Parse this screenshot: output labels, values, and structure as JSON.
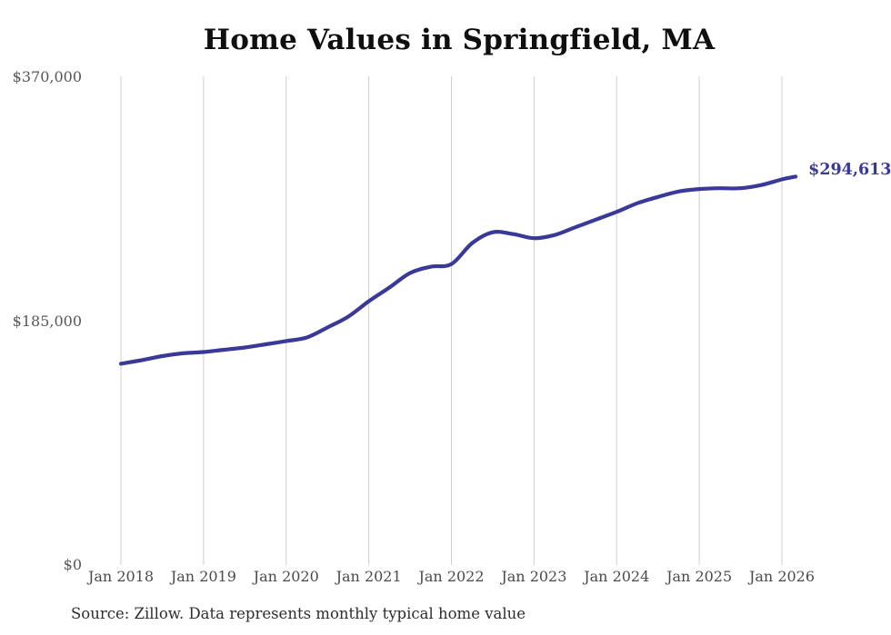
{
  "chart": {
    "title": "Home Values in Springfield, MA",
    "end_label": "$294,613",
    "source_note": "Source: Zillow. Data represents monthly typical home value",
    "colors": {
      "line": "#39399a",
      "end_label_text": "#39399a",
      "grid": "#cfcfcf",
      "y_tick_text": "#565656",
      "x_tick_text": "#4a4a4a",
      "title_text": "#0f0f0f",
      "source_text": "#2e2e2e",
      "background": "#ffffff"
    }
  },
  "chart_data": {
    "type": "line",
    "title": "Home Values in Springfield, MA",
    "x_tick_labels": [
      "Jan 2018",
      "Jan 2019",
      "Jan 2020",
      "Jan 2021",
      "Jan 2022",
      "Jan 2023",
      "Jan 2024",
      "Jan 2025",
      "Jan 2026"
    ],
    "y_tick_labels": [
      "$0",
      "$185,000",
      "$370,000"
    ],
    "y_ticks": [
      0,
      185000,
      370000
    ],
    "ylim": [
      0,
      370000
    ],
    "grid": "vertical-only",
    "legend": "none",
    "x_unit": "months since Jan 2018, monthly typical home value in USD",
    "series": [
      {
        "name": "Typical home value",
        "points": [
          [
            0,
            152700
          ],
          [
            3,
            155400
          ],
          [
            6,
            158500
          ],
          [
            9,
            160600
          ],
          [
            12,
            161600
          ],
          [
            15,
            163300
          ],
          [
            18,
            165000
          ],
          [
            21,
            167400
          ],
          [
            24,
            169900
          ],
          [
            27,
            172600
          ],
          [
            30,
            180200
          ],
          [
            33,
            188400
          ],
          [
            36,
            200100
          ],
          [
            39,
            210500
          ],
          [
            42,
            221500
          ],
          [
            45,
            226300
          ],
          [
            48,
            228300
          ],
          [
            51,
            244100
          ],
          [
            54,
            252400
          ],
          [
            57,
            251000
          ],
          [
            60,
            247900
          ],
          [
            63,
            250300
          ],
          [
            66,
            256200
          ],
          [
            69,
            262000
          ],
          [
            72,
            267900
          ],
          [
            75,
            274400
          ],
          [
            78,
            279200
          ],
          [
            81,
            283300
          ],
          [
            84,
            285200
          ],
          [
            87,
            285800
          ],
          [
            90,
            285800
          ],
          [
            93,
            288200
          ],
          [
            96,
            292500
          ],
          [
            98,
            294613
          ]
        ]
      }
    ],
    "end_value": 294613,
    "end_value_label": "$294,613",
    "annotations": [
      "$294,613 marks the latest value at the right end of the line"
    ]
  }
}
